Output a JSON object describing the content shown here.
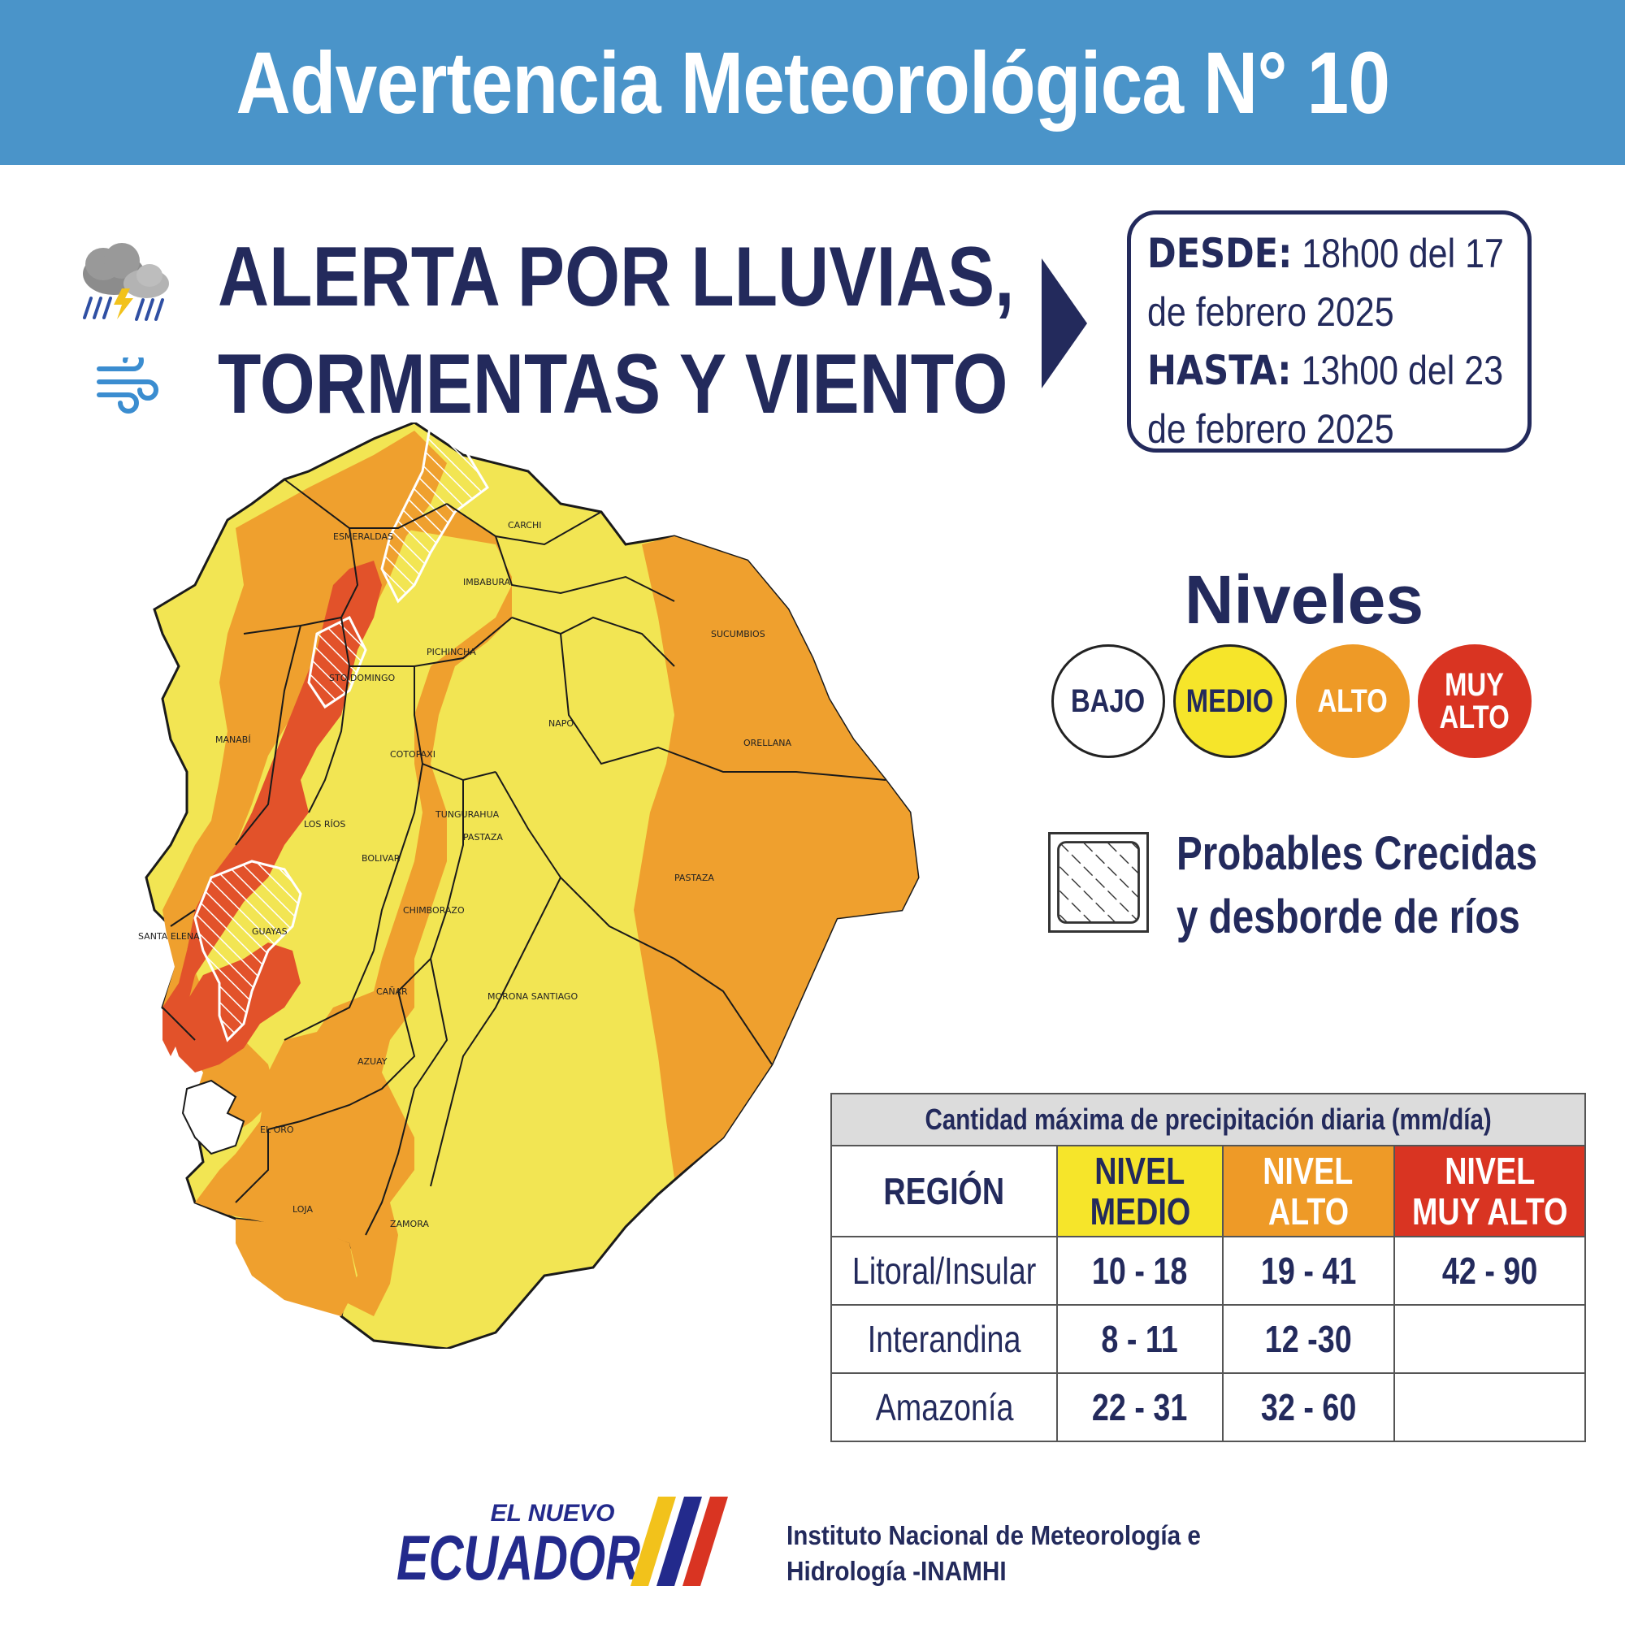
{
  "header": {
    "title": "Advertencia Meteorológica N° 10"
  },
  "alert": {
    "line1": "ALERTA POR LLUVIAS,",
    "line2": "TORMENTAS Y VIENTO",
    "icons": [
      "storm-cloud-icon",
      "wind-icon",
      "arrow-right-icon"
    ]
  },
  "validity": {
    "from_label": "DESDE:",
    "from_line1": " 18h00 del 17",
    "from_line2": "de febrero 2025",
    "to_label": "HASTA:",
    "to_line1": " 13h00 del 23",
    "to_line2": "de febrero 2025"
  },
  "legend": {
    "title": "Niveles",
    "levels": [
      {
        "line1": "BAJO",
        "line2": "",
        "color": "#ffffff"
      },
      {
        "line1": "MEDIO",
        "line2": "",
        "color": "#f6e52a"
      },
      {
        "line1": "ALTO",
        "line2": "",
        "color": "#ee9a27"
      },
      {
        "line1": "MUY",
        "line2": "ALTO",
        "color": "#d93422"
      }
    ],
    "hatch_line1": "Probables Crecidas",
    "hatch_line2": "y desborde de ríos"
  },
  "map": {
    "provinces": [
      {
        "name": "ESMERALDAS",
        "level": "ALTO"
      },
      {
        "name": "CARCHI",
        "level": "MEDIO"
      },
      {
        "name": "IMBABURA",
        "level": "MEDIO"
      },
      {
        "name": "PICHINCHA",
        "level": "ALTO"
      },
      {
        "name": "STO DOMINGO",
        "level": "ALTO"
      },
      {
        "name": "SUCUMBIOS",
        "level": "ALTO"
      },
      {
        "name": "MANABÍ",
        "level": "ALTO"
      },
      {
        "name": "NAPO",
        "level": "MEDIO"
      },
      {
        "name": "ORELLANA",
        "level": "ALTO"
      },
      {
        "name": "COTOPAXI",
        "level": "MEDIO"
      },
      {
        "name": "LOS RÍOS",
        "level": "MUY ALTO"
      },
      {
        "name": "TUNGURAHUA",
        "level": "MEDIO"
      },
      {
        "name": "PASTAZA",
        "level": "MEDIO"
      },
      {
        "name": "PASTAZA",
        "level": "ALTO"
      },
      {
        "name": "BOLIVAR",
        "level": "ALTO"
      },
      {
        "name": "CHIMBORAZO",
        "level": "MEDIO"
      },
      {
        "name": "SANTA ELENA",
        "level": "MEDIO"
      },
      {
        "name": "GUAYAS",
        "level": "MUY ALTO"
      },
      {
        "name": "CAÑAR",
        "level": "ALTO"
      },
      {
        "name": "MORONA SANTIAGO",
        "level": "MEDIO"
      },
      {
        "name": "AZUAY",
        "level": "MEDIO"
      },
      {
        "name": "EL ORO",
        "level": "ALTO"
      },
      {
        "name": "LOJA",
        "level": "ALTO"
      },
      {
        "name": "ZAMORA",
        "level": "MEDIO"
      }
    ],
    "colors": {
      "medio": "#f2e553",
      "alto": "#efa02e",
      "alto_dark": "#e8892c",
      "muy_alto": "#e2522a",
      "border": "#1a1a1a"
    }
  },
  "table": {
    "caption": "Cantidad máxima de precipitación diaria (mm/día)",
    "headers": {
      "region": "REGIÓN",
      "medio_1": "NIVEL",
      "medio_2": "MEDIO",
      "alto_1": "NIVEL",
      "alto_2": "ALTO",
      "muy_1": "NIVEL",
      "muy_2": "MUY ALTO"
    },
    "rows": [
      {
        "region": "Litoral/Insular",
        "medio": "10 - 18",
        "alto": "19 - 41",
        "muy_alto": "42 - 90"
      },
      {
        "region": "Interandina",
        "medio": "8 - 11",
        "alto": "12 -30",
        "muy_alto": ""
      },
      {
        "region": "Amazonía",
        "medio": "22 - 31",
        "alto": "32 - 60",
        "muy_alto": ""
      }
    ]
  },
  "footer": {
    "logo_small": "EL NUEVO",
    "logo_big": "ECUADOR",
    "institute_line1": "Instituto Nacional de Meteorología e",
    "institute_line2": "Hidrología -INAMHI"
  }
}
